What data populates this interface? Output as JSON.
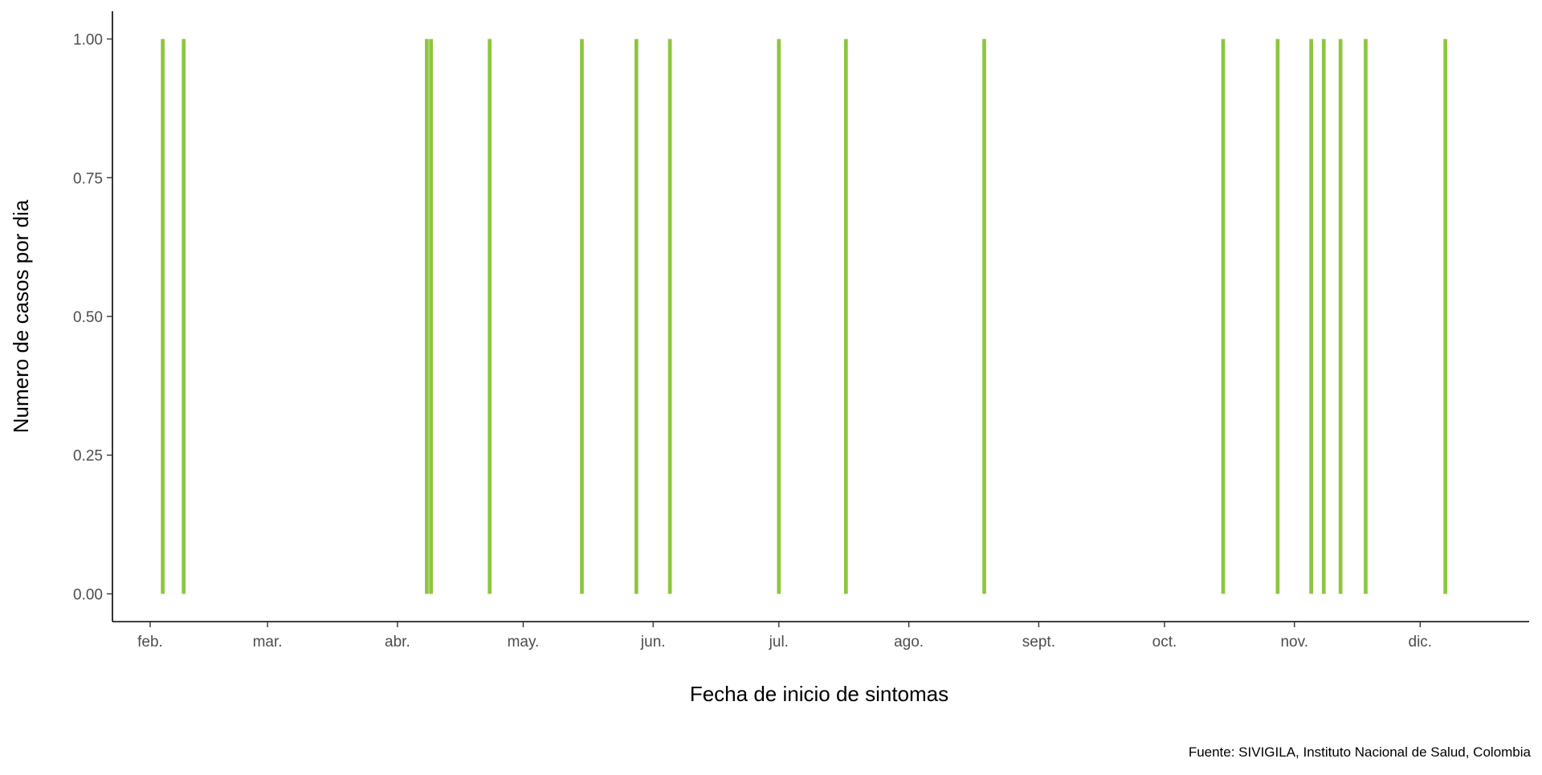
{
  "chart_data": {
    "type": "bar",
    "title": "",
    "xlabel": "Fecha de inicio de sintomas",
    "ylabel": "Numero de casos por dia",
    "caption": "Fuente: SIVIGILA, Instituto Nacional de Salud, Colombia",
    "x_axis_type": "date",
    "xlim": [
      "2021-01-23",
      "2021-12-27"
    ],
    "ylim": [
      -0.05,
      1.05
    ],
    "x_ticks": [
      {
        "date": "2021-02-01",
        "label": "feb."
      },
      {
        "date": "2021-03-01",
        "label": "mar."
      },
      {
        "date": "2021-04-01",
        "label": "abr."
      },
      {
        "date": "2021-05-01",
        "label": "may."
      },
      {
        "date": "2021-06-01",
        "label": "jun."
      },
      {
        "date": "2021-07-01",
        "label": "jul."
      },
      {
        "date": "2021-08-01",
        "label": "ago."
      },
      {
        "date": "2021-09-01",
        "label": "sept."
      },
      {
        "date": "2021-10-01",
        "label": "oct."
      },
      {
        "date": "2021-11-01",
        "label": "nov."
      },
      {
        "date": "2021-12-01",
        "label": "dic."
      }
    ],
    "y_ticks": [
      {
        "value": 0,
        "label": "0.00"
      },
      {
        "value": 0.25,
        "label": "0.25"
      },
      {
        "value": 0.5,
        "label": "0.50"
      },
      {
        "value": 0.75,
        "label": "0.75"
      },
      {
        "value": 1,
        "label": "1.00"
      }
    ],
    "grid": false,
    "bar_color": "#8dc63f",
    "series": [
      {
        "x": [
          "2021-02-04",
          "2021-02-09",
          "2021-04-08",
          "2021-04-09",
          "2021-04-23",
          "2021-05-15",
          "2021-05-28",
          "2021-06-05",
          "2021-07-01",
          "2021-07-17",
          "2021-08-19",
          "2021-10-15",
          "2021-10-28",
          "2021-11-05",
          "2021-11-08",
          "2021-11-12",
          "2021-11-18",
          "2021-12-07"
        ],
        "values": [
          1,
          1,
          1,
          1,
          1,
          1,
          1,
          1,
          1,
          1,
          1,
          1,
          1,
          1,
          1,
          1,
          1,
          1
        ]
      }
    ]
  }
}
